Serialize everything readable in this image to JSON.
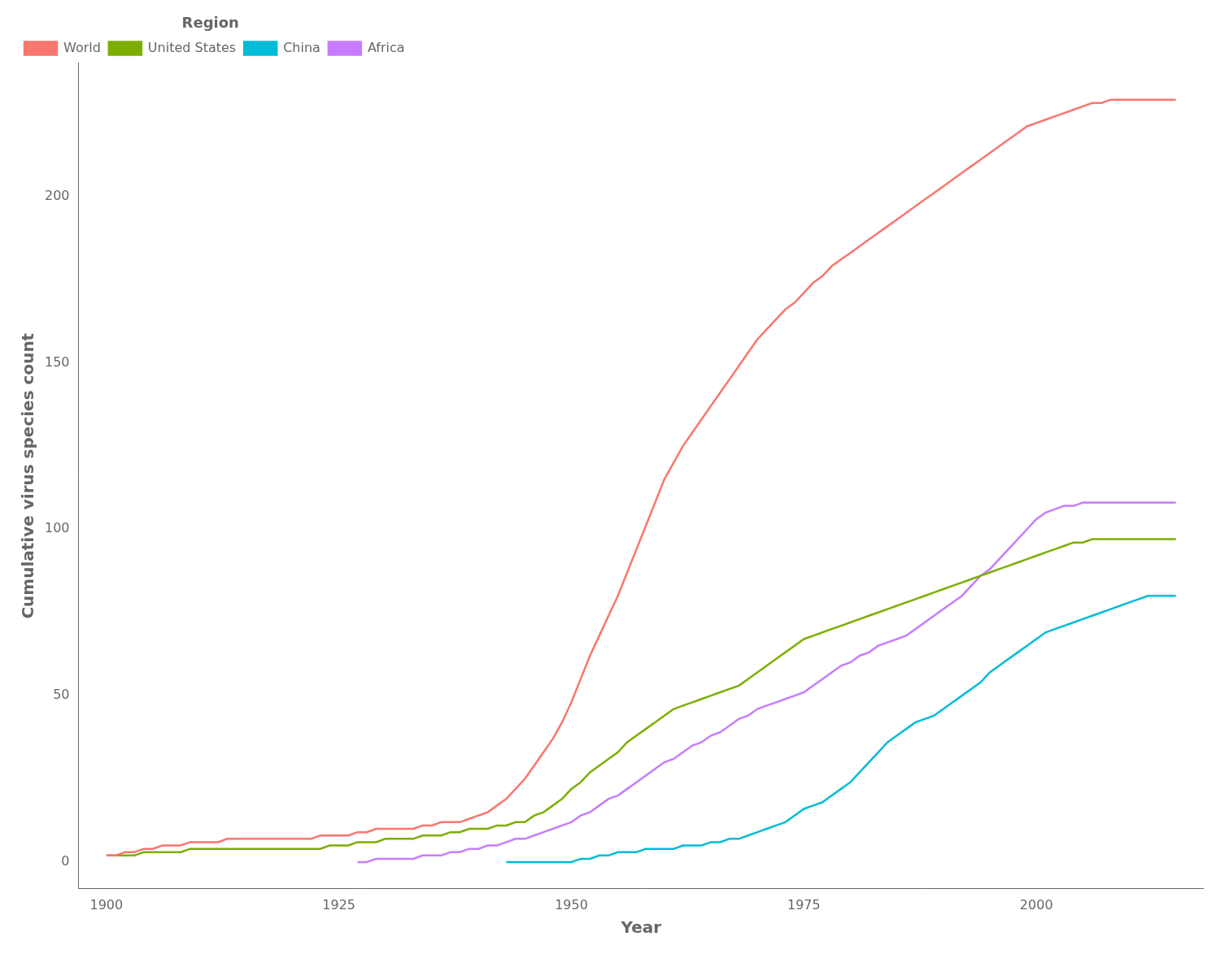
{
  "chart_data": {
    "type": "line",
    "xlabel": "Year",
    "ylabel": "Cumulative virus species count",
    "legend_title": "Region",
    "legend": "upper left",
    "grid": false,
    "xlim": [
      1897,
      2018
    ],
    "ylim": [
      -8,
      240
    ],
    "xticks": [
      1900,
      1925,
      1950,
      1975,
      2000
    ],
    "yticks": [
      0,
      50,
      100,
      150,
      200
    ],
    "series": [
      {
        "name": "World",
        "color": "#F8766D",
        "x": [
          1900,
          1901,
          1902,
          1903,
          1904,
          1905,
          1906,
          1907,
          1908,
          1909,
          1910,
          1911,
          1912,
          1913,
          1914,
          1915,
          1916,
          1917,
          1918,
          1919,
          1920,
          1921,
          1922,
          1923,
          1924,
          1925,
          1926,
          1927,
          1928,
          1929,
          1930,
          1931,
          1932,
          1933,
          1934,
          1935,
          1936,
          1937,
          1938,
          1939,
          1940,
          1941,
          1942,
          1943,
          1944,
          1945,
          1946,
          1947,
          1948,
          1949,
          1950,
          1951,
          1952,
          1953,
          1954,
          1955,
          1956,
          1957,
          1958,
          1959,
          1960,
          1961,
          1962,
          1963,
          1964,
          1965,
          1966,
          1967,
          1968,
          1969,
          1970,
          1971,
          1972,
          1973,
          1974,
          1975,
          1976,
          1977,
          1978,
          1979,
          1980,
          1981,
          1982,
          1983,
          1984,
          1985,
          1986,
          1987,
          1988,
          1989,
          1990,
          1991,
          1992,
          1993,
          1994,
          1995,
          1996,
          1997,
          1998,
          1999,
          2000,
          2001,
          2002,
          2003,
          2004,
          2005,
          2006,
          2007,
          2008,
          2009,
          2010,
          2011,
          2012,
          2013,
          2014,
          2015
        ],
        "values": [
          2,
          2,
          3,
          3,
          4,
          4,
          5,
          5,
          5,
          6,
          6,
          6,
          6,
          7,
          7,
          7,
          7,
          7,
          7,
          7,
          7,
          7,
          7,
          8,
          8,
          8,
          8,
          9,
          9,
          10,
          10,
          10,
          10,
          10,
          11,
          11,
          12,
          12,
          12,
          13,
          14,
          15,
          17,
          19,
          22,
          25,
          29,
          33,
          37,
          42,
          48,
          55,
          62,
          68,
          74,
          80,
          87,
          94,
          101,
          108,
          115,
          120,
          125,
          129,
          133,
          137,
          141,
          145,
          149,
          153,
          157,
          160,
          163,
          166,
          168,
          171,
          174,
          176,
          179,
          181,
          183,
          185,
          187,
          189,
          191,
          193,
          195,
          197,
          199,
          201,
          203,
          205,
          207,
          209,
          211,
          213,
          215,
          217,
          219,
          221,
          222,
          223,
          224,
          225,
          226,
          227,
          228,
          228,
          229,
          229,
          229,
          229,
          229,
          229,
          229,
          229
        ]
      },
      {
        "name": "United States",
        "color": "#7CAE00",
        "x": [
          1900,
          1901,
          1902,
          1903,
          1904,
          1905,
          1906,
          1907,
          1908,
          1909,
          1910,
          1911,
          1912,
          1913,
          1914,
          1915,
          1916,
          1917,
          1918,
          1919,
          1920,
          1921,
          1922,
          1923,
          1924,
          1925,
          1926,
          1927,
          1928,
          1929,
          1930,
          1931,
          1932,
          1933,
          1934,
          1935,
          1936,
          1937,
          1938,
          1939,
          1940,
          1941,
          1942,
          1943,
          1944,
          1945,
          1946,
          1947,
          1948,
          1949,
          1950,
          1951,
          1952,
          1953,
          1954,
          1955,
          1956,
          1957,
          1958,
          1959,
          1960,
          1961,
          1962,
          1963,
          1964,
          1965,
          1966,
          1967,
          1968,
          1969,
          1970,
          1971,
          1972,
          1973,
          1974,
          1975,
          1976,
          1977,
          1978,
          1979,
          1980,
          1981,
          1982,
          1983,
          1984,
          1985,
          1986,
          1987,
          1988,
          1989,
          1990,
          1991,
          1992,
          1993,
          1994,
          1995,
          1996,
          1997,
          1998,
          1999,
          2000,
          2001,
          2002,
          2003,
          2004,
          2005,
          2006,
          2007,
          2008,
          2009,
          2010,
          2011,
          2012,
          2013,
          2014,
          2015
        ],
        "values": [
          2,
          2,
          2,
          2,
          3,
          3,
          3,
          3,
          3,
          4,
          4,
          4,
          4,
          4,
          4,
          4,
          4,
          4,
          4,
          4,
          4,
          4,
          4,
          4,
          5,
          5,
          5,
          6,
          6,
          6,
          7,
          7,
          7,
          7,
          8,
          8,
          8,
          9,
          9,
          10,
          10,
          10,
          11,
          11,
          12,
          12,
          14,
          15,
          17,
          19,
          22,
          24,
          27,
          29,
          31,
          33,
          36,
          38,
          40,
          42,
          44,
          46,
          47,
          48,
          49,
          50,
          51,
          52,
          53,
          55,
          57,
          59,
          61,
          63,
          65,
          67,
          68,
          69,
          70,
          71,
          72,
          73,
          74,
          75,
          76,
          77,
          78,
          79,
          80,
          81,
          82,
          83,
          84,
          85,
          86,
          87,
          88,
          89,
          90,
          91,
          92,
          93,
          94,
          95,
          96,
          96,
          97,
          97,
          97,
          97,
          97,
          97,
          97,
          97,
          97,
          97
        ]
      },
      {
        "name": "China",
        "color": "#00BCD8",
        "x": [
          1943,
          1944,
          1945,
          1946,
          1947,
          1948,
          1949,
          1950,
          1951,
          1952,
          1953,
          1954,
          1955,
          1956,
          1957,
          1958,
          1959,
          1960,
          1961,
          1962,
          1963,
          1964,
          1965,
          1966,
          1967,
          1968,
          1969,
          1970,
          1971,
          1972,
          1973,
          1974,
          1975,
          1976,
          1977,
          1978,
          1979,
          1980,
          1981,
          1982,
          1983,
          1984,
          1985,
          1986,
          1987,
          1988,
          1989,
          1990,
          1991,
          1992,
          1993,
          1994,
          1995,
          1996,
          1997,
          1998,
          1999,
          2000,
          2001,
          2002,
          2003,
          2004,
          2005,
          2006,
          2007,
          2008,
          2009,
          2010,
          2011,
          2012,
          2013,
          2014,
          2015
        ],
        "values": [
          0,
          0,
          0,
          0,
          0,
          0,
          0,
          0,
          1,
          1,
          2,
          2,
          3,
          3,
          3,
          4,
          4,
          4,
          4,
          5,
          5,
          5,
          6,
          6,
          7,
          7,
          8,
          9,
          10,
          11,
          12,
          14,
          16,
          17,
          18,
          20,
          22,
          24,
          27,
          30,
          33,
          36,
          38,
          40,
          42,
          43,
          44,
          46,
          48,
          50,
          52,
          54,
          57,
          59,
          61,
          63,
          65,
          67,
          69,
          70,
          71,
          72,
          73,
          74,
          75,
          76,
          77,
          78,
          79,
          80,
          80,
          80,
          80
        ]
      },
      {
        "name": "Africa",
        "color": "#C77CFF",
        "x": [
          1927,
          1928,
          1929,
          1930,
          1931,
          1932,
          1933,
          1934,
          1935,
          1936,
          1937,
          1938,
          1939,
          1940,
          1941,
          1942,
          1943,
          1944,
          1945,
          1946,
          1947,
          1948,
          1949,
          1950,
          1951,
          1952,
          1953,
          1954,
          1955,
          1956,
          1957,
          1958,
          1959,
          1960,
          1961,
          1962,
          1963,
          1964,
          1965,
          1966,
          1967,
          1968,
          1969,
          1970,
          1971,
          1972,
          1973,
          1974,
          1975,
          1976,
          1977,
          1978,
          1979,
          1980,
          1981,
          1982,
          1983,
          1984,
          1985,
          1986,
          1987,
          1988,
          1989,
          1990,
          1991,
          1992,
          1993,
          1994,
          1995,
          1996,
          1997,
          1998,
          1999,
          2000,
          2001,
          2002,
          2003,
          2004,
          2005,
          2006,
          2007,
          2008,
          2009,
          2010,
          2011,
          2012,
          2013,
          2014,
          2015
        ],
        "values": [
          0,
          0,
          1,
          1,
          1,
          1,
          1,
          2,
          2,
          2,
          3,
          3,
          4,
          4,
          5,
          5,
          6,
          7,
          7,
          8,
          9,
          10,
          11,
          12,
          14,
          15,
          17,
          19,
          20,
          22,
          24,
          26,
          28,
          30,
          31,
          33,
          35,
          36,
          38,
          39,
          41,
          43,
          44,
          46,
          47,
          48,
          49,
          50,
          51,
          53,
          55,
          57,
          59,
          60,
          62,
          63,
          65,
          66,
          67,
          68,
          70,
          72,
          74,
          76,
          78,
          80,
          83,
          86,
          88,
          91,
          94,
          97,
          100,
          103,
          105,
          106,
          107,
          107,
          108,
          108,
          108,
          108,
          108,
          108,
          108,
          108,
          108,
          108,
          108
        ]
      }
    ]
  }
}
